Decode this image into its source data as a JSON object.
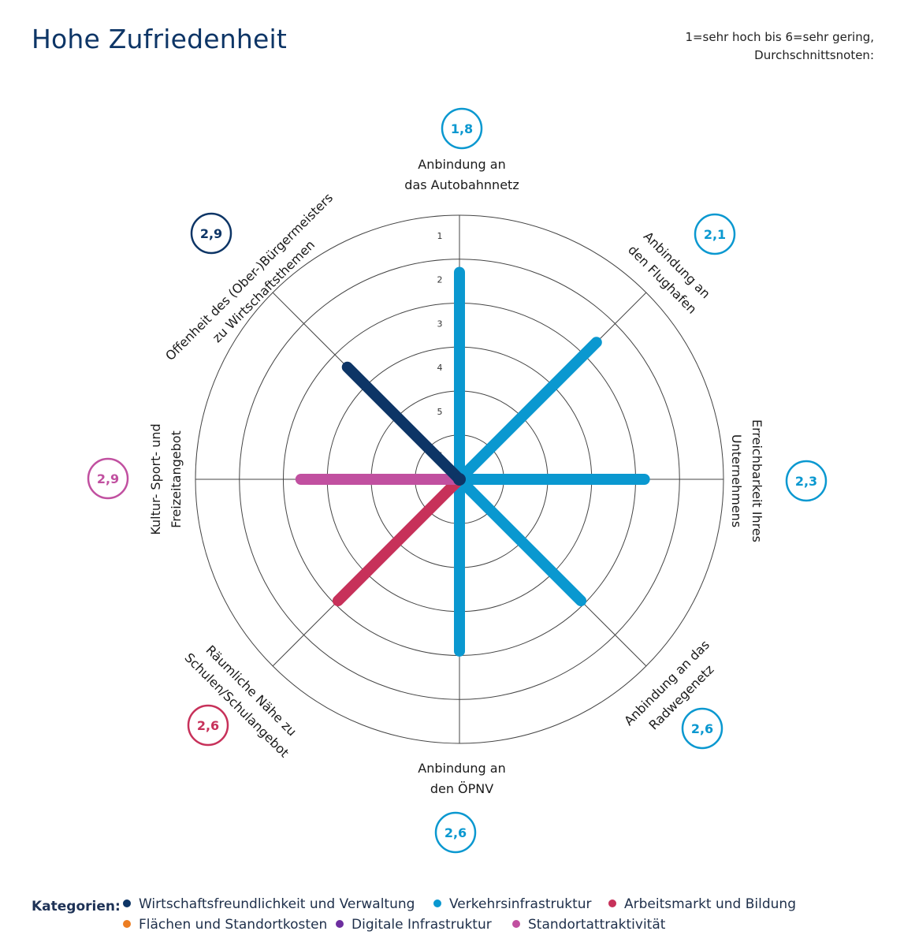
{
  "title": "Hohe Zufriedenheit",
  "note": {
    "line1": "1=sehr hoch bis 6=sehr gering,",
    "line2": "Durchschnittsnoten:"
  },
  "colors": {
    "verwaltung": "#0d3566",
    "verkehr": "#0a98d0",
    "bildung": "#c7315a",
    "flaechen": "#ec7d22",
    "digital": "#6d2e9f",
    "standort": "#c150a0",
    "grid": "#444444"
  },
  "chart_data": {
    "type": "radial",
    "scale_min": 1,
    "scale_max": 6,
    "ticks": [
      "1",
      "2",
      "3",
      "4",
      "5",
      "6"
    ],
    "grid": true,
    "axes": [
      {
        "label": [
          "Anbindung an",
          "das Autobahnnetz"
        ],
        "value": 1.8,
        "value_label": "1,8",
        "category": "verkehr"
      },
      {
        "label": [
          "Anbindung an",
          "den Flughafen"
        ],
        "value": 2.1,
        "value_label": "2,1",
        "category": "verkehr"
      },
      {
        "label": [
          "Erreichbarkeit Ihres",
          "Unternehmens"
        ],
        "value": 2.3,
        "value_label": "2,3",
        "category": "verkehr"
      },
      {
        "label": [
          "Anbindung an das",
          "Radwegenetz"
        ],
        "value": 2.6,
        "value_label": "2,6",
        "category": "verkehr"
      },
      {
        "label": [
          "Anbindung an",
          "den ÖPNV"
        ],
        "value": 2.6,
        "value_label": "2,6",
        "category": "verkehr"
      },
      {
        "label": [
          "Räumliche Nähe zu",
          "Schulen/Schulangebot"
        ],
        "value": 2.6,
        "value_label": "2,6",
        "category": "bildung"
      },
      {
        "label": [
          "Kultur- Sport- und",
          "Freizeitangebot"
        ],
        "value": 2.9,
        "value_label": "2,9",
        "category": "standort"
      },
      {
        "label": [
          "Offenheit des (Ober-)Bürgermeisters",
          "zu Wirtschaftsthemen"
        ],
        "value": 2.9,
        "value_label": "2,9",
        "category": "verwaltung"
      }
    ]
  },
  "legend": {
    "title": "Kategorien:",
    "items": [
      {
        "label": "Wirtschaftsfreundlichkeit und Verwaltung",
        "color": "#0d3566"
      },
      {
        "label": "Verkehrsinfrastruktur",
        "color": "#0a98d0"
      },
      {
        "label": "Arbeitsmarkt und Bildung",
        "color": "#c7315a"
      },
      {
        "label": "Flächen und Standortkosten",
        "color": "#ec7d22"
      },
      {
        "label": "Digitale Infrastruktur",
        "color": "#6d2e9f"
      },
      {
        "label": "Standortattraktivität",
        "color": "#c150a0"
      }
    ]
  }
}
